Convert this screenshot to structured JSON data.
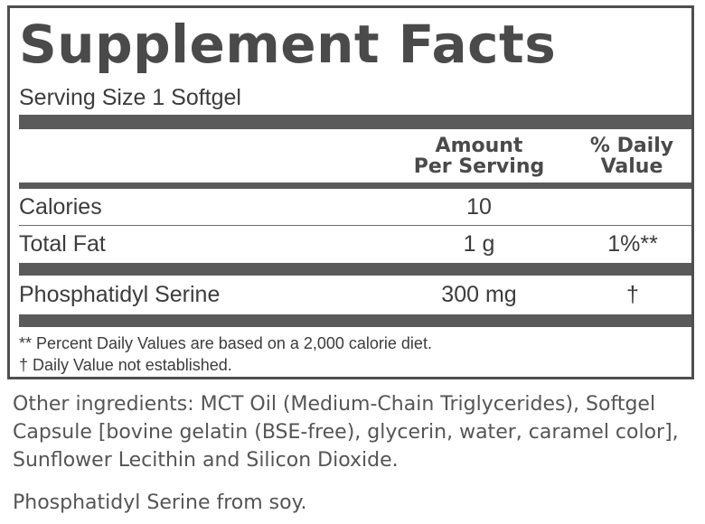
{
  "label": {
    "title": "Supplement Facts",
    "serving_size": "Serving Size 1 Softgel",
    "header": {
      "amount_line1": "Amount",
      "amount_line2": "Per Serving",
      "dv_line1": "% Daily",
      "dv_line2": "Value"
    },
    "rows": [
      {
        "name": "Calories",
        "amount": "10",
        "daily_value": ""
      },
      {
        "name": "Total Fat",
        "amount": "1 g",
        "daily_value": "1%**"
      },
      {
        "name": "Phosphatidyl Serine",
        "amount": "300 mg",
        "daily_value": "†"
      }
    ],
    "footnotes": [
      "** Percent Daily Values are based on a 2,000 calorie diet.",
      "† Daily Value not established."
    ]
  },
  "other_ingredients": "Other ingredients: MCT Oil (Medium-Chain Triglycerides), Softgel Capsule [bovine gelatin (BSE-free), glycerin, water, caramel color], Sunflower Lecithin and Silicon Dioxide.",
  "allergen_note": "Phosphatidyl Serine from soy."
}
